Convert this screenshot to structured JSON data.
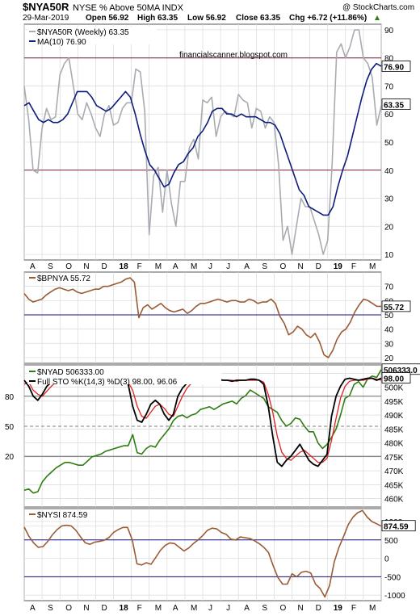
{
  "header": {
    "symbol": "$NYA50R",
    "description": "NYSE % Above 50MA  INDX",
    "copyright": "@ StockCharts.com",
    "date": "29-Mar-2019",
    "open": "Open 56.92",
    "high": "High 63.35",
    "low": "Low 56.92",
    "close": "Close 63.35",
    "chg": "Chg +6.72 (+11.86%)",
    "watermark": "financialscanner.blogspot.com"
  },
  "colors": {
    "gray_line": "#a8acb2",
    "navy": "#0f1c7a",
    "brown": "#9a5b34",
    "green": "#2f7d12",
    "black": "#000000",
    "red": "#e02020",
    "hline_maroon": "#7a1f3d",
    "hline_navy": "#12127a",
    "grid": "#d9d9d9"
  },
  "x_axis": {
    "months": [
      "A",
      "S",
      "O",
      "N",
      "D",
      "18",
      "F",
      "M",
      "A",
      "M",
      "J",
      "J",
      "A",
      "S",
      "O",
      "N",
      "D",
      "19",
      "F",
      "M"
    ],
    "year_labels": [
      "18",
      "19"
    ]
  },
  "chart_data": [
    {
      "type": "line",
      "panel": "NYA50R",
      "legend": [
        "$NYA50R (Weekly) 63.35",
        "MA(10) 76.90"
      ],
      "ylim": [
        8,
        92
      ],
      "yticks": [
        10,
        20,
        30,
        40,
        50,
        60,
        70,
        80,
        90
      ],
      "hlines": [
        80,
        40
      ],
      "last_labels": [
        "76.90",
        "63.35"
      ],
      "series": [
        {
          "name": "$NYA50R (Weekly)",
          "last": 63.35,
          "values": [
            70,
            58,
            40,
            39,
            55,
            62,
            58,
            59,
            74,
            78,
            80,
            70,
            60,
            58,
            64,
            60,
            55,
            52,
            60,
            63,
            56,
            57,
            62,
            64,
            64,
            76,
            75,
            61,
            17,
            38,
            41,
            25,
            40,
            28,
            20,
            36,
            36,
            48,
            51,
            44,
            65,
            64,
            66,
            52,
            59,
            61,
            60,
            59,
            67,
            65,
            64,
            55,
            62,
            61,
            55,
            59,
            57,
            42,
            15,
            20,
            10,
            20,
            30,
            27,
            27,
            22,
            17,
            10,
            15,
            42,
            82,
            85,
            80,
            84,
            90,
            90,
            80,
            78,
            73,
            56,
            63
          ]
        },
        {
          "name": "MA(10)",
          "last": 76.9,
          "values": [
            63,
            64,
            61,
            58,
            57,
            58,
            57,
            57,
            58,
            60,
            64,
            68,
            68,
            68,
            66,
            63,
            62,
            61,
            62,
            64,
            66,
            68,
            66,
            60,
            53,
            47,
            42,
            40,
            37,
            34,
            35,
            39,
            42,
            43,
            46,
            48,
            52,
            54,
            57,
            61,
            62,
            62,
            60,
            60,
            59,
            60,
            59,
            59,
            59,
            58,
            57,
            57,
            56,
            53,
            48,
            43,
            38,
            33,
            31,
            27,
            26,
            25,
            24,
            24,
            27,
            34,
            40,
            45,
            52,
            59,
            66,
            72,
            76,
            78,
            77
          ]
        }
      ]
    },
    {
      "type": "line",
      "panel": "BPNYA",
      "legend": [
        "$BPNYA 55.72"
      ],
      "ylim": [
        16,
        80
      ],
      "yticks": [
        20,
        30,
        40,
        50,
        60,
        70
      ],
      "hlines": [
        50
      ],
      "last_labels": [
        "55.72"
      ],
      "series": [
        {
          "name": "$BPNYA",
          "last": 55.72,
          "values": [
            65,
            61,
            59,
            60,
            61,
            64,
            66,
            68,
            69,
            68,
            67,
            68,
            66,
            65,
            66,
            67,
            68,
            68,
            70,
            70,
            71,
            72,
            73,
            75,
            76,
            73,
            48,
            55,
            57,
            54,
            56,
            58,
            55,
            53,
            52,
            53,
            54,
            51,
            53,
            56,
            58,
            58,
            59,
            60,
            61,
            60,
            59,
            60,
            60,
            59,
            59,
            61,
            60,
            58,
            59,
            59,
            61,
            58,
            49,
            44,
            36,
            38,
            42,
            40,
            36,
            34,
            37,
            31,
            22,
            20,
            25,
            33,
            38,
            40,
            45,
            52,
            57,
            61,
            60,
            58,
            56,
            56
          ]
        }
      ]
    },
    {
      "type": "line",
      "panel": "NYAD",
      "legend": [
        "$NYAD 506333.00",
        "Full STO %K(14,3) %D(3) 98.00, 96.06"
      ],
      "ylim": [
        457000,
        508000
      ],
      "yticks": [
        460000,
        465000,
        470000,
        475000,
        480000,
        485000,
        490000,
        495000,
        500000,
        505000
      ],
      "ytick_labels": [
        "460K",
        "465K",
        "470K",
        "475K",
        "480K",
        "485K",
        "490K",
        "495K",
        "500K",
        "505K"
      ],
      "sto_levels": [
        80,
        50,
        20
      ],
      "last_labels": [
        "506333.0",
        "98.00"
      ],
      "series": [
        {
          "name": "$NYAD",
          "last": 506333,
          "values": [
            463000,
            463500,
            462000,
            462500,
            466000,
            468000,
            469500,
            471000,
            472000,
            473000,
            473000,
            472500,
            472000,
            472000,
            473500,
            475000,
            475500,
            476000,
            477000,
            477500,
            478000,
            478500,
            479000,
            479000,
            483000,
            476500,
            476000,
            478000,
            479000,
            478500,
            481000,
            483000,
            485000,
            488000,
            489500,
            490000,
            489000,
            490000,
            490500,
            492000,
            492500,
            493000,
            492000,
            493000,
            494000,
            494500,
            495000,
            494000,
            496000,
            497000,
            499000,
            498000,
            497000,
            496000,
            493000,
            492000,
            491000,
            488000,
            486000,
            487000,
            489000,
            488500,
            486000,
            484000,
            484000,
            480000,
            478000,
            479500,
            482000,
            485000,
            490000,
            496000,
            497000,
            501000,
            502000,
            500000,
            503000,
            504000,
            503500,
            506333
          ]
        },
        {
          "name": "%K",
          "last": 98.0,
          "values": [
            96,
            90,
            80,
            76,
            82,
            90,
            94,
            96,
            98,
            98,
            98,
            97,
            95,
            94,
            95,
            97,
            98,
            97,
            96,
            96,
            97,
            96,
            95,
            92,
            70,
            56,
            54,
            62,
            72,
            76,
            72,
            62,
            56,
            62,
            80,
            88,
            93,
            96,
            97,
            97,
            97,
            97,
            96,
            97,
            96,
            96,
            95,
            96,
            96,
            96,
            97,
            97,
            96,
            92,
            70,
            40,
            14,
            10,
            16,
            20,
            26,
            32,
            24,
            16,
            12,
            10,
            16,
            22,
            60,
            80,
            90,
            97,
            98,
            97,
            96,
            97,
            98,
            98,
            96,
            98
          ]
        },
        {
          "name": "%D",
          "last": 96.06,
          "values": [
            92,
            94,
            86,
            82,
            80,
            85,
            90,
            94,
            96,
            97,
            98,
            97,
            96,
            95,
            94,
            95,
            96,
            97,
            96,
            96,
            96,
            96,
            96,
            94,
            86,
            70,
            60,
            58,
            64,
            70,
            72,
            68,
            62,
            60,
            70,
            80,
            88,
            93,
            96,
            97,
            97,
            97,
            97,
            96,
            96,
            96,
            96,
            95,
            96,
            96,
            96,
            96,
            96,
            94,
            82,
            64,
            40,
            24,
            18,
            16,
            20,
            24,
            26,
            22,
            18,
            14,
            14,
            18,
            36,
            58,
            78,
            90,
            95,
            96,
            96,
            96,
            97,
            98,
            97,
            96.06
          ]
        }
      ]
    },
    {
      "type": "line",
      "panel": "NYSI",
      "legend": [
        "$NYSI 874.59"
      ],
      "ylim": [
        -1150,
        1350
      ],
      "yticks": [
        -1000,
        -500,
        0,
        500,
        874.59,
        1000
      ],
      "ytick_labels": [
        "-1000",
        "-500",
        "0",
        "500",
        "",
        "1000"
      ],
      "hlines": [
        500,
        -500
      ],
      "last_labels": [
        "874.59"
      ],
      "series": [
        {
          "name": "$NYSI",
          "last": 874.59,
          "values": [
            850,
            600,
            420,
            300,
            320,
            460,
            640,
            780,
            880,
            900,
            880,
            760,
            580,
            420,
            380,
            440,
            460,
            490,
            560,
            700,
            780,
            840,
            840,
            500,
            -150,
            -180,
            -120,
            -160,
            20,
            220,
            350,
            420,
            400,
            300,
            200,
            280,
            400,
            500,
            620,
            760,
            820,
            800,
            700,
            650,
            520,
            500,
            580,
            560,
            540,
            480,
            400,
            300,
            160,
            -200,
            -520,
            -700,
            -700,
            -420,
            -500,
            -380,
            -350,
            -400,
            -700,
            -820,
            -1050,
            -740,
            -100,
            300,
            600,
            920,
            1120,
            1240,
            1300,
            1120,
            1000,
            940,
            874.59
          ]
        }
      ]
    }
  ]
}
